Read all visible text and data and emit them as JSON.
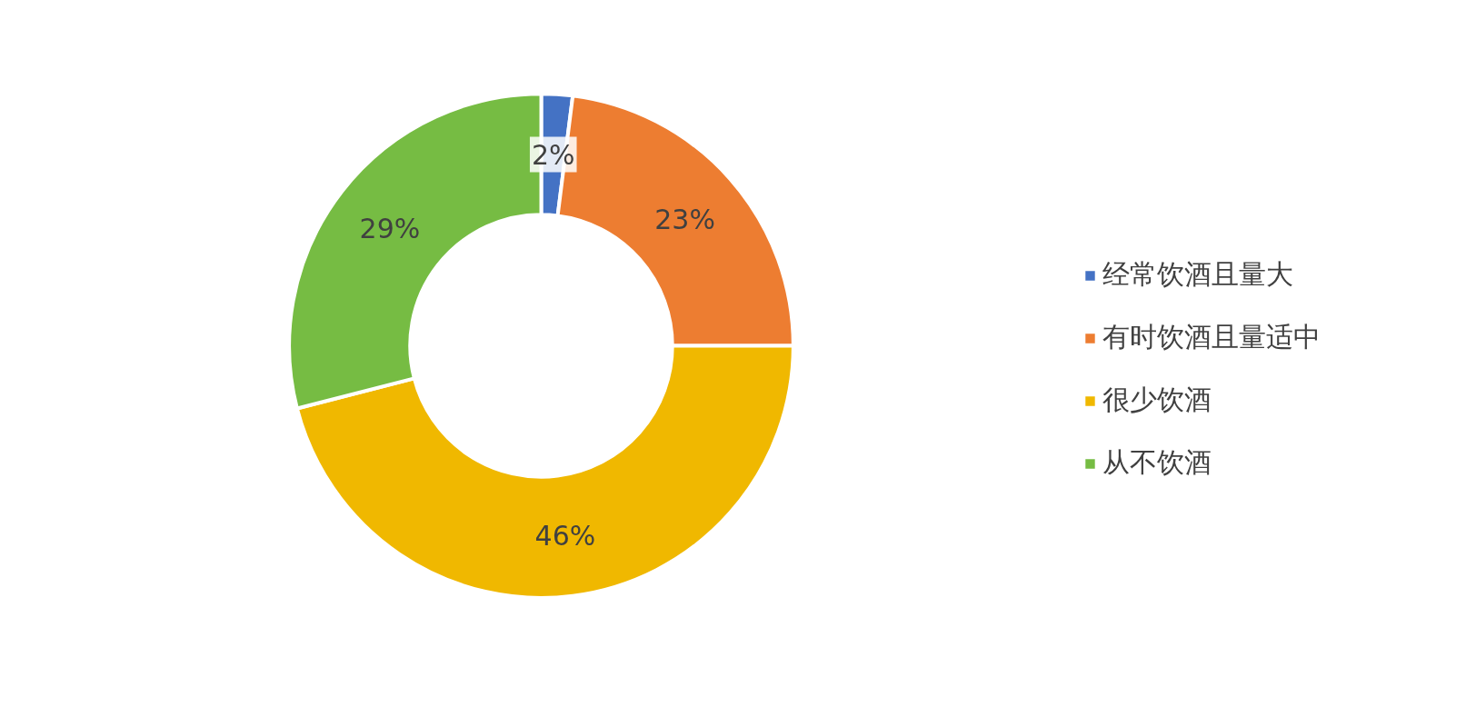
{
  "chart_data": {
    "type": "donut",
    "categories": [
      "经常饮酒且量大",
      "有时饮酒且量适中",
      "很少饮酒",
      "从不饮酒"
    ],
    "values": [
      2,
      23,
      46,
      29
    ],
    "colors": [
      "#4472c4",
      "#ed7d31",
      "#f0b800",
      "#76bc43"
    ],
    "value_labels": [
      "2%",
      "23%",
      "46%",
      "29%"
    ],
    "legend": "right"
  }
}
